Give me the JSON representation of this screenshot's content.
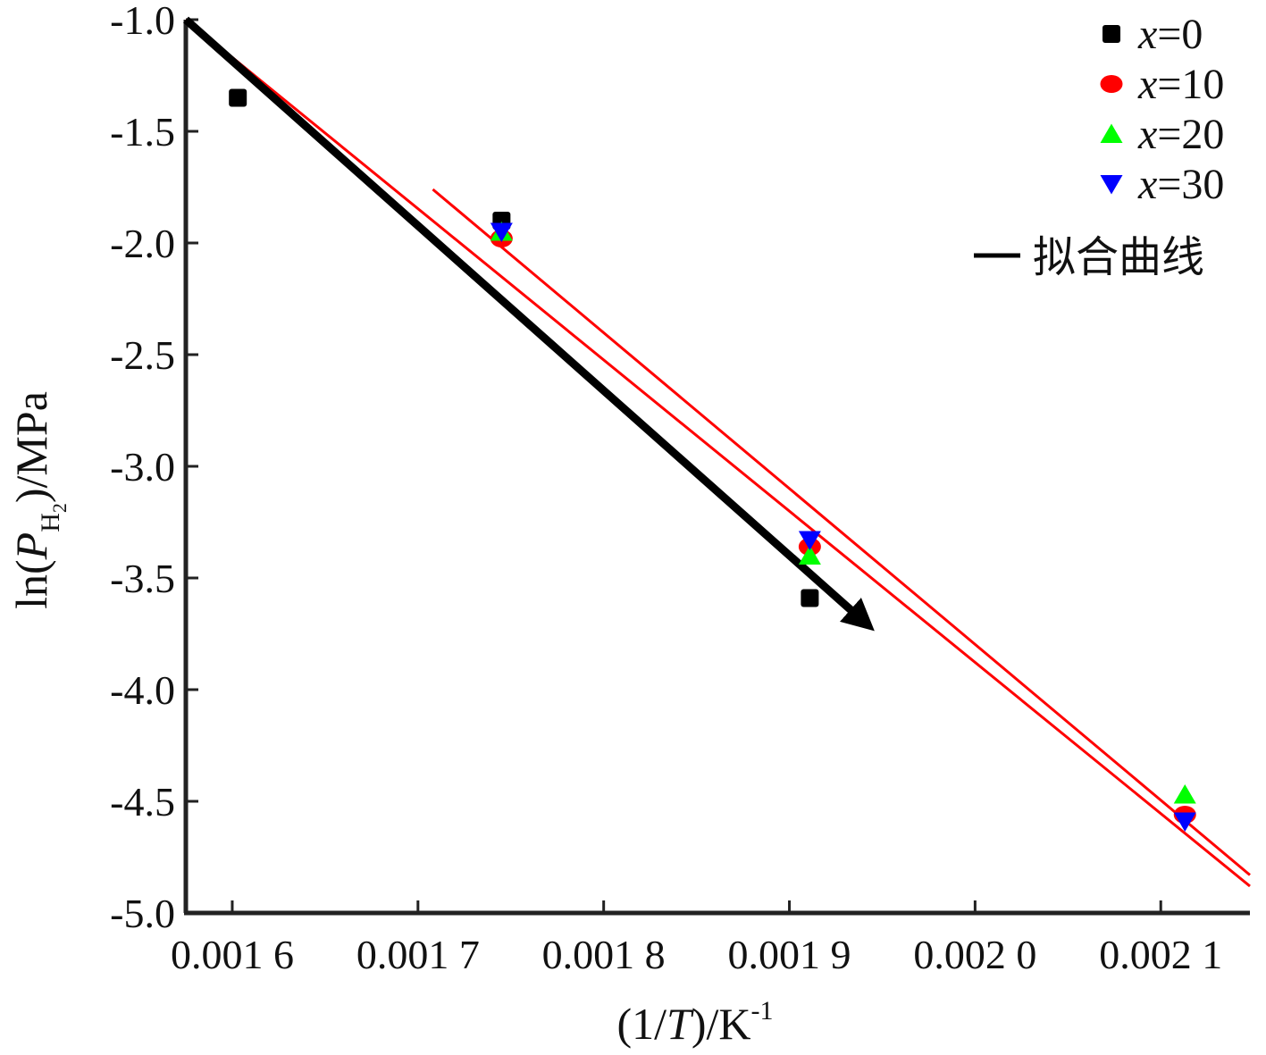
{
  "chart_data": {
    "type": "scatter",
    "xlabel": "(1/T)/K-1",
    "ylabel": "ln(PH2)/MPa",
    "xlim": [
      0.001575,
      0.002148
    ],
    "ylim": [
      -5.0,
      -1.0
    ],
    "x_ticks": [
      0.0016,
      0.0017,
      0.0018,
      0.0019,
      0.002,
      0.0021
    ],
    "x_tick_labels": [
      "0.001 6",
      "0.001 7",
      "0.001 8",
      "0.001 9",
      "0.002 0",
      "0.002 1"
    ],
    "y_ticks": [
      -1.0,
      -1.5,
      -2.0,
      -2.5,
      -3.0,
      -3.5,
      -4.0,
      -4.5,
      -5.0
    ],
    "y_tick_labels": [
      "-1.0",
      "-1.5",
      "-2.0",
      "-2.5",
      "-3.0",
      "-3.5",
      "-4.0",
      "-4.5",
      "-5.0"
    ],
    "series": [
      {
        "name": "x=0",
        "color": "#000000",
        "marker": "square",
        "x": [
          0.001603,
          0.001745,
          0.001911
        ],
        "y": [
          -1.35,
          -1.9,
          -3.59
        ]
      },
      {
        "name": "x=10",
        "color": "#ff0000",
        "marker": "circle",
        "x": [
          0.001745,
          0.001911,
          0.002113
        ],
        "y": [
          -1.98,
          -3.36,
          -4.56
        ]
      },
      {
        "name": "x=20",
        "color": "#00ff00",
        "marker": "triangle-up",
        "x": [
          0.001745,
          0.001911,
          0.002113
        ],
        "y": [
          -1.95,
          -3.4,
          -4.47
        ]
      },
      {
        "name": "x=30",
        "color": "#0000ff",
        "marker": "triangle-down",
        "x": [
          0.001745,
          0.001911,
          0.002113
        ],
        "y": [
          -1.95,
          -3.33,
          -4.59
        ]
      }
    ],
    "fit_lines": [
      {
        "color": "#ff0000",
        "x": [
          0.001575,
          0.002148
        ],
        "y": [
          -1.0,
          -4.88
        ]
      },
      {
        "color": "#ff0000",
        "x": [
          0.001708,
          0.002148
        ],
        "y": [
          -1.76,
          -4.83
        ]
      }
    ],
    "legend": {
      "placement": "top-right",
      "fit_label": "拟合曲线",
      "fit_line_color": "#000000"
    },
    "annotations": [
      {
        "type": "arrow",
        "color": "#000000",
        "from": [
          0.001575,
          -1.0
        ],
        "to": [
          0.00195,
          -3.76
        ]
      }
    ],
    "grid": false
  }
}
